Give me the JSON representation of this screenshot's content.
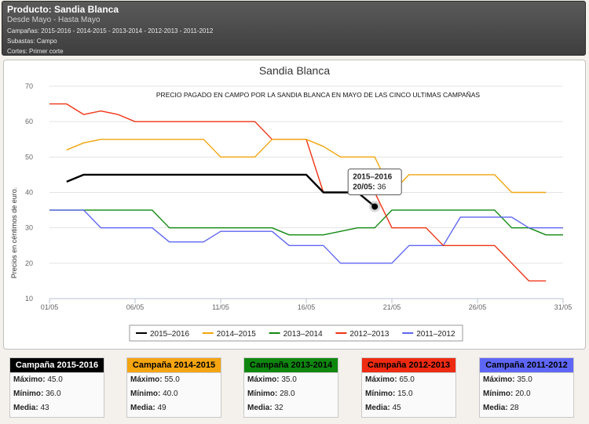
{
  "header": {
    "product": "Producto: Sandia Blanca",
    "period": "Desde Mayo - Hasta Mayo",
    "campaigns": "Campañas: 2015-2016 - 2014-2015 - 2013-2014 - 2012-2013 - 2011-2012",
    "subastas": "Subastas: Campo",
    "cortes": "Cortes: Primer corte"
  },
  "chart_data": {
    "type": "line",
    "title": "Sandia Blanca",
    "subtitle": "PRECIO PAGADO EN CAMPO POR LA SANDIA BLANCA EN MAYO DE LAS CINCO ULTIMAS CAMPAÑAS",
    "ylabel": "Precios en céntimos de euro.",
    "xlabel": "",
    "ylim": [
      10,
      70
    ],
    "yticks": [
      10,
      20,
      30,
      40,
      50,
      60,
      70
    ],
    "xlim": [
      1,
      31
    ],
    "xticks": [
      {
        "day": 1,
        "label": "01/05"
      },
      {
        "day": 6,
        "label": "06/05"
      },
      {
        "day": 11,
        "label": "11/05"
      },
      {
        "day": 16,
        "label": "16/05"
      },
      {
        "day": 21,
        "label": "21/05"
      },
      {
        "day": 26,
        "label": "26/05"
      },
      {
        "day": 31,
        "label": "31/05"
      }
    ],
    "grid": true,
    "legend": "bottom-center",
    "series": [
      {
        "name": "2015–2016",
        "color": "#000000",
        "width": 2.4,
        "points": [
          [
            2,
            43
          ],
          [
            3,
            45
          ],
          [
            4,
            45
          ],
          [
            5,
            45
          ],
          [
            6,
            45
          ],
          [
            7,
            45
          ],
          [
            8,
            45
          ],
          [
            9,
            45
          ],
          [
            10,
            45
          ],
          [
            11,
            45
          ],
          [
            12,
            45
          ],
          [
            13,
            45
          ],
          [
            14,
            45
          ],
          [
            15,
            45
          ],
          [
            16,
            45
          ],
          [
            17,
            40
          ],
          [
            18,
            40
          ],
          [
            19,
            40
          ],
          [
            20,
            36
          ]
        ]
      },
      {
        "name": "2014–2015",
        "color": "#f2a40d",
        "width": 1.4,
        "points": [
          [
            2,
            52
          ],
          [
            3,
            54
          ],
          [
            4,
            55
          ],
          [
            5,
            55
          ],
          [
            6,
            55
          ],
          [
            7,
            55
          ],
          [
            8,
            55
          ],
          [
            9,
            55
          ],
          [
            10,
            55
          ],
          [
            11,
            50
          ],
          [
            12,
            50
          ],
          [
            13,
            50
          ],
          [
            14,
            55
          ],
          [
            15,
            55
          ],
          [
            16,
            55
          ],
          [
            17,
            53
          ],
          [
            18,
            50
          ],
          [
            19,
            50
          ],
          [
            20,
            50
          ],
          [
            21,
            40
          ],
          [
            22,
            45
          ],
          [
            23,
            45
          ],
          [
            24,
            45
          ],
          [
            25,
            45
          ],
          [
            26,
            45
          ],
          [
            27,
            45
          ],
          [
            28,
            40
          ],
          [
            29,
            40
          ],
          [
            30,
            40
          ]
        ]
      },
      {
        "name": "2013–2014",
        "color": "#118a11",
        "width": 1.4,
        "points": [
          [
            1,
            35
          ],
          [
            2,
            35
          ],
          [
            3,
            35
          ],
          [
            4,
            35
          ],
          [
            5,
            35
          ],
          [
            6,
            35
          ],
          [
            7,
            35
          ],
          [
            8,
            30
          ],
          [
            9,
            30
          ],
          [
            10,
            30
          ],
          [
            11,
            30
          ],
          [
            12,
            30
          ],
          [
            13,
            30
          ],
          [
            14,
            30
          ],
          [
            15,
            28
          ],
          [
            16,
            28
          ],
          [
            17,
            28
          ],
          [
            18,
            29
          ],
          [
            19,
            30
          ],
          [
            20,
            30
          ],
          [
            21,
            35
          ],
          [
            22,
            35
          ],
          [
            23,
            35
          ],
          [
            24,
            35
          ],
          [
            25,
            35
          ],
          [
            26,
            35
          ],
          [
            27,
            35
          ],
          [
            28,
            30
          ],
          [
            29,
            30
          ],
          [
            30,
            28
          ],
          [
            31,
            28
          ]
        ]
      },
      {
        "name": "2012–2013",
        "color": "#ef3414",
        "width": 1.4,
        "points": [
          [
            1,
            65
          ],
          [
            2,
            65
          ],
          [
            3,
            62
          ],
          [
            4,
            63
          ],
          [
            5,
            62
          ],
          [
            6,
            60
          ],
          [
            7,
            60
          ],
          [
            8,
            60
          ],
          [
            9,
            60
          ],
          [
            10,
            60
          ],
          [
            11,
            60
          ],
          [
            12,
            60
          ],
          [
            13,
            60
          ],
          [
            14,
            55
          ],
          [
            15,
            55
          ],
          [
            16,
            55
          ],
          [
            17,
            40
          ],
          [
            18,
            40
          ],
          [
            19,
            40
          ],
          [
            20,
            40
          ],
          [
            21,
            30
          ],
          [
            22,
            30
          ],
          [
            23,
            30
          ],
          [
            24,
            25
          ],
          [
            25,
            25
          ],
          [
            26,
            25
          ],
          [
            27,
            25
          ],
          [
            28,
            20
          ],
          [
            29,
            15
          ],
          [
            30,
            15
          ]
        ]
      },
      {
        "name": "2011–2012",
        "color": "#5f66f2",
        "width": 1.4,
        "points": [
          [
            1,
            35
          ],
          [
            2,
            35
          ],
          [
            3,
            35
          ],
          [
            4,
            30
          ],
          [
            5,
            30
          ],
          [
            6,
            30
          ],
          [
            7,
            30
          ],
          [
            8,
            26
          ],
          [
            9,
            26
          ],
          [
            10,
            26
          ],
          [
            11,
            29
          ],
          [
            12,
            29
          ],
          [
            13,
            29
          ],
          [
            14,
            29
          ],
          [
            15,
            25
          ],
          [
            16,
            25
          ],
          [
            17,
            25
          ],
          [
            18,
            20
          ],
          [
            19,
            20
          ],
          [
            20,
            20
          ],
          [
            21,
            20
          ],
          [
            22,
            25
          ],
          [
            23,
            25
          ],
          [
            24,
            25
          ],
          [
            25,
            33
          ],
          [
            26,
            33
          ],
          [
            27,
            33
          ],
          [
            28,
            33
          ],
          [
            29,
            30
          ],
          [
            30,
            30
          ],
          [
            31,
            30
          ]
        ]
      }
    ],
    "tooltip": {
      "line1": "2015–2016",
      "date": "20/05",
      "value": "36",
      "day": 20,
      "y": 36
    }
  },
  "stats": [
    {
      "title": "Campaña 2015-2016",
      "bg": "#000000",
      "fg": "#ffffff",
      "max_label": "Máximo:",
      "max": "45.0",
      "min_label": "Mínimo:",
      "min": "36.0",
      "avg_label": "Media:",
      "avg": "43"
    },
    {
      "title": "Campaña 2014-2015",
      "bg": "#f5a511",
      "fg": "#000000",
      "max_label": "Máximo:",
      "max": "55.0",
      "min_label": "Mínimo:",
      "min": "40.0",
      "avg_label": "Media:",
      "avg": "49"
    },
    {
      "title": "Campaña 2013-2014",
      "bg": "#0f870f",
      "fg": "#000000",
      "max_label": "Máximo:",
      "max": "35.0",
      "min_label": "Mínimo:",
      "min": "28.0",
      "avg_label": "Media:",
      "avg": "32"
    },
    {
      "title": "Campaña 2012-2013",
      "bg": "#ee2a11",
      "fg": "#000000",
      "max_label": "Máximo:",
      "max": "65.0",
      "min_label": "Mínimo:",
      "min": "15.0",
      "avg_label": "Media:",
      "avg": "45"
    },
    {
      "title": "Campaña 2011-2012",
      "bg": "#5e66f5",
      "fg": "#000000",
      "max_label": "Máximo:",
      "max": "35.0",
      "min_label": "Mínimo:",
      "min": "20.0",
      "avg_label": "Media:",
      "avg": "28"
    }
  ]
}
